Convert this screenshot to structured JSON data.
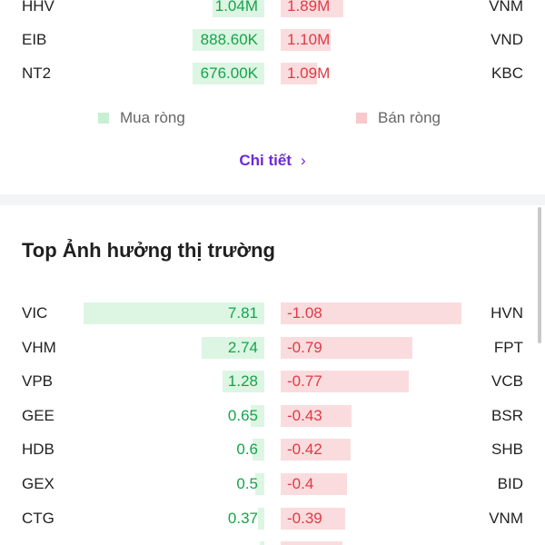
{
  "net_trading": {
    "rows": [
      {
        "buy_ticker": "HHV",
        "buy_value": "1.04M",
        "buy_frac": 0.2,
        "sell_value": "1.89M",
        "sell_frac": 0.36,
        "sell_ticker": "VNM"
      },
      {
        "buy_ticker": "EIB",
        "buy_value": "888.60K",
        "buy_frac": 0.36,
        "sell_value": "1.10M",
        "sell_frac": 0.26,
        "sell_ticker": "VND"
      },
      {
        "buy_ticker": "NT2",
        "buy_value": "676.00K",
        "buy_frac": 0.36,
        "sell_value": "1.09M",
        "sell_frac": 0.2,
        "sell_ticker": "KBC"
      }
    ],
    "legend": {
      "buy_label": "Mua ròng",
      "sell_label": "Bán ròng"
    },
    "details_label": "Chi tiết",
    "colors": {
      "buy_bar": "#dcf6e3",
      "sell_bar": "#fbdcde",
      "buy_swatch": "#c7f0d2",
      "sell_swatch": "#f8c8cc"
    }
  },
  "market_impact": {
    "title": "Top Ảnh hưởng thị trường",
    "rows": [
      {
        "buy_ticker": "VIC",
        "buy_value": "7.81",
        "sell_value": "-1.08",
        "sell_ticker": "HVN"
      },
      {
        "buy_ticker": "VHM",
        "buy_value": "2.74",
        "sell_value": "-0.79",
        "sell_ticker": "FPT"
      },
      {
        "buy_ticker": "VPB",
        "buy_value": "1.28",
        "sell_value": "-0.77",
        "sell_ticker": "VCB"
      },
      {
        "buy_ticker": "GEE",
        "buy_value": "0.65",
        "sell_value": "-0.43",
        "sell_ticker": "BSR"
      },
      {
        "buy_ticker": "HDB",
        "buy_value": "0.6",
        "sell_value": "-0.42",
        "sell_ticker": "SHB"
      },
      {
        "buy_ticker": "GEX",
        "buy_value": "0.5",
        "sell_value": "-0.4",
        "sell_ticker": "BID"
      },
      {
        "buy_ticker": "CTG",
        "buy_value": "0.37",
        "sell_value": "-0.39",
        "sell_ticker": "VNM"
      }
    ]
  }
}
